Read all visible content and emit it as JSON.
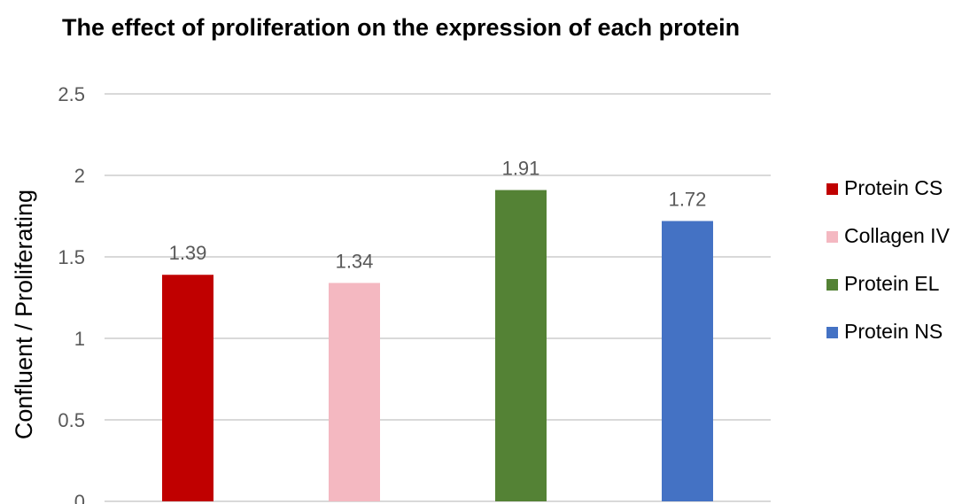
{
  "chart_data": {
    "type": "bar",
    "title": "The effect of proliferation on the expression of each protein",
    "xlabel": "",
    "ylabel": "Confluent / Proliferating",
    "ylim": [
      0,
      2.5
    ],
    "yticks": [
      0,
      0.5,
      1,
      1.5,
      2,
      2.5
    ],
    "ytick_labels": [
      "0",
      "0.5",
      "1",
      "1.5",
      "2",
      "2.5"
    ],
    "grid": true,
    "legend_position": "right",
    "categories": [
      "Protein CS",
      "Collagen IV",
      "Protein EL",
      "Protein NS"
    ],
    "values": [
      1.39,
      1.34,
      1.91,
      1.72
    ],
    "data_labels": [
      "1.39",
      "1.34",
      "1.91",
      "1.72"
    ],
    "colors": [
      "#c00000",
      "#f4b8c1",
      "#548235",
      "#4472c4"
    ],
    "legend": [
      {
        "label": "Protein CS",
        "color": "#c00000"
      },
      {
        "label": "Collagen IV",
        "color": "#f4b8c1"
      },
      {
        "label": "Protein EL",
        "color": "#548235"
      },
      {
        "label": "Protein NS",
        "color": "#4472c4"
      }
    ]
  }
}
